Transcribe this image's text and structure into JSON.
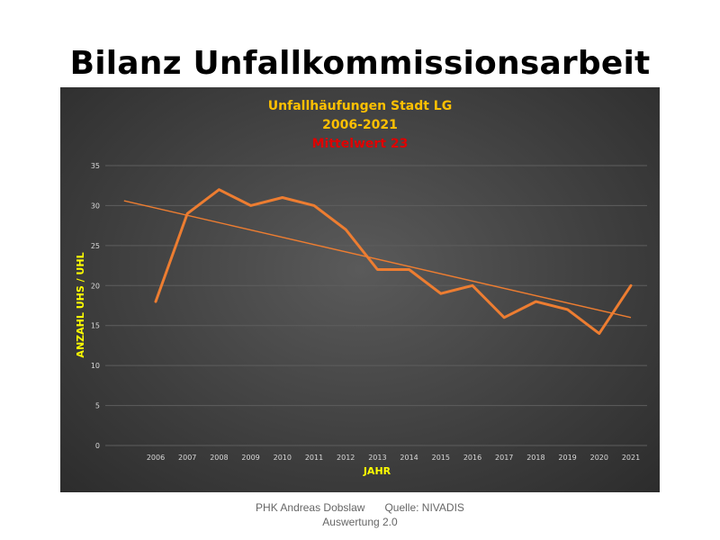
{
  "slide": {
    "title": "Bilanz Unfallkommissionsarbeit",
    "footer_author": "PHK Andreas Dobslaw",
    "footer_source": "Quelle: NIVADIS",
    "footer_version": "Auswertung 2.0"
  },
  "chart_data": {
    "type": "line",
    "title": "Unfallhäufungen Stadt LG",
    "subtitle": "2006-2021",
    "annotation": "Mittelwert 23",
    "xlabel": "JAHR",
    "ylabel": "ANZAHL UHS / UHL",
    "categories": [
      "2006",
      "2007",
      "2008",
      "2009",
      "2010",
      "2011",
      "2012",
      "2013",
      "2014",
      "2015",
      "2016",
      "2017",
      "2018",
      "2019",
      "2020",
      "2021"
    ],
    "series": [
      {
        "values": [
          18,
          29,
          32,
          30,
          31,
          30,
          27,
          22,
          22,
          19,
          20,
          16,
          18,
          17,
          14,
          20
        ]
      }
    ],
    "trendline": {
      "start": 30.6,
      "end": 16.0
    },
    "ylim": [
      0,
      35
    ],
    "yticks": [
      0,
      5,
      10,
      15,
      20,
      25,
      30,
      35
    ],
    "grid": true,
    "colors": {
      "series": "#ED7D31",
      "title": "#FFC000",
      "annotation": "#E00000",
      "axis_label": "#FFFF00",
      "tick": "#D9D9D9",
      "grid": "#5E5E5E"
    }
  }
}
